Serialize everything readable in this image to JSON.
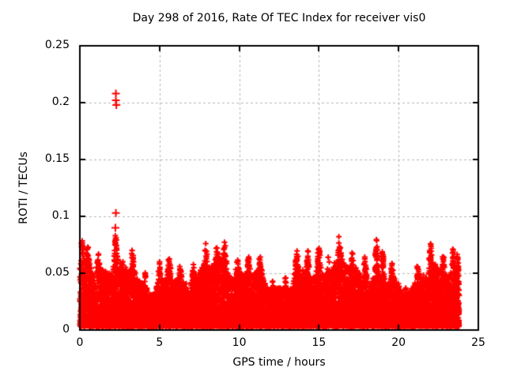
{
  "window": {
    "background": "#ffffff"
  },
  "chart_data": {
    "type": "scatter",
    "title": "Day 298 of 2016, Rate Of TEC Index for receiver vis0",
    "xlabel": "GPS time / hours",
    "ylabel": "ROTI / TECUs",
    "xlim": [
      0,
      25
    ],
    "ylim": [
      0,
      0.25
    ],
    "xticks": [
      0,
      5,
      10,
      15,
      20,
      25
    ],
    "xtick_labels": [
      "0",
      "5",
      "10",
      "15",
      "20",
      "25"
    ],
    "yticks": [
      0,
      0.05,
      0.1,
      0.15,
      0.2,
      0.25
    ],
    "ytick_labels": [
      "0",
      "0.05",
      "0.1",
      "0.15",
      "0.2",
      "0.25"
    ],
    "grid": true,
    "grid_style": "dashed",
    "legend": "none",
    "marker": "plus",
    "marker_color": "#ff0000",
    "grid_color": "#b4b4b4",
    "axis_color": "#000000",
    "text_color": "#000000",
    "data_time_range_hours": [
      0,
      23.8
    ],
    "point_count_estimate": 18000,
    "band": {
      "floor": 0.003,
      "dense_top": 0.05,
      "typical_spike_top": 0.08
    },
    "outliers": [
      [
        2.26,
        0.208
      ],
      [
        2.26,
        0.202
      ],
      [
        2.29,
        0.198
      ],
      [
        2.26,
        0.103
      ],
      [
        2.23,
        0.09
      ]
    ],
    "envelope_spikes": [
      [
        0.15,
        0.022,
        0.06
      ],
      [
        0.5,
        0.018,
        0.08
      ],
      [
        1.15,
        0.012,
        0.07
      ],
      [
        2.25,
        0.03,
        0.1
      ],
      [
        3.3,
        0.022,
        0.08
      ],
      [
        4.1,
        0.012,
        0.06
      ],
      [
        5.0,
        0.016,
        0.07
      ],
      [
        5.6,
        0.02,
        0.09
      ],
      [
        6.3,
        0.01,
        0.06
      ],
      [
        7.1,
        0.016,
        0.08
      ],
      [
        7.9,
        0.018,
        0.07
      ],
      [
        8.6,
        0.012,
        0.06
      ],
      [
        9.1,
        0.022,
        0.09
      ],
      [
        9.9,
        0.014,
        0.07
      ],
      [
        10.6,
        0.018,
        0.08
      ],
      [
        11.3,
        0.012,
        0.06
      ],
      [
        12.1,
        0.01,
        0.07
      ],
      [
        12.9,
        0.013,
        0.06
      ],
      [
        13.6,
        0.02,
        0.08
      ],
      [
        14.3,
        0.024,
        0.07
      ],
      [
        15.0,
        0.028,
        0.09
      ],
      [
        15.6,
        0.016,
        0.06
      ],
      [
        16.3,
        0.02,
        0.08
      ],
      [
        17.1,
        0.014,
        0.06
      ],
      [
        17.9,
        0.024,
        0.08
      ],
      [
        18.6,
        0.03,
        0.09
      ],
      [
        19.0,
        0.026,
        0.06
      ],
      [
        19.6,
        0.014,
        0.07
      ],
      [
        20.4,
        0.008,
        0.06
      ],
      [
        21.2,
        0.012,
        0.07
      ],
      [
        22.0,
        0.022,
        0.08
      ],
      [
        22.8,
        0.018,
        0.07
      ],
      [
        23.4,
        0.016,
        0.06
      ],
      [
        23.7,
        0.012,
        0.05
      ]
    ],
    "generation": {
      "seed": 1234,
      "n_band": 15000,
      "n_tail": 420,
      "band_floor": 0.003,
      "band_power": 2.6
    }
  }
}
